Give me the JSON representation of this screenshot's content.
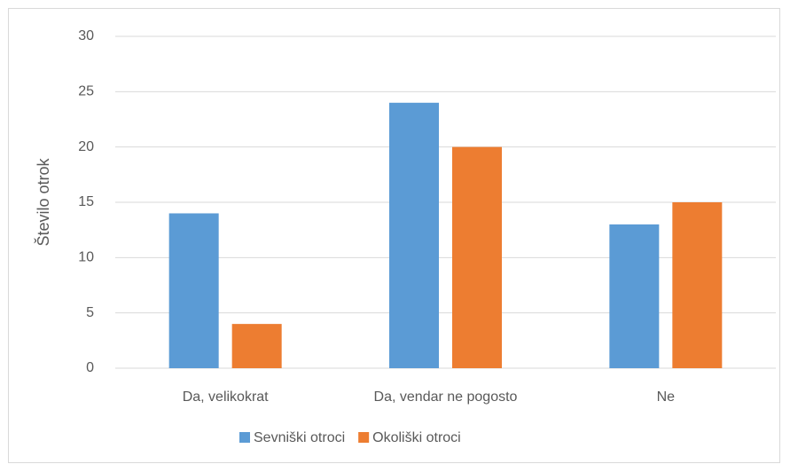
{
  "chart_data": {
    "type": "bar",
    "y_label": "Število otrok",
    "categories": [
      "Da, velikokrat",
      "Da, vendar ne pogosto",
      "Ne"
    ],
    "series": [
      {
        "name": "Sevniški otroci",
        "color": "#5b9bd5",
        "values": [
          14,
          24,
          13
        ]
      },
      {
        "name": "Okoliški otroci",
        "color": "#ed7d31",
        "values": [
          4,
          20,
          15
        ]
      }
    ],
    "ylim": [
      0,
      30
    ],
    "yticks": [
      0,
      5,
      10,
      15,
      20,
      25,
      30
    ],
    "grid": true,
    "legend": "bottom"
  }
}
